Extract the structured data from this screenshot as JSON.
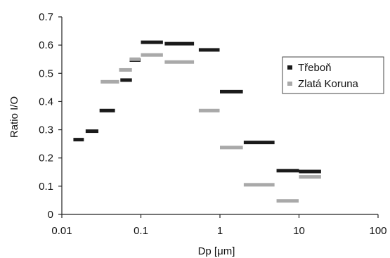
{
  "chart_data": {
    "type": "scatter",
    "xscale": "log",
    "xlabel": "Dp [μm]",
    "ylabel": "Ratio I/O",
    "xlim": [
      0.01,
      100
    ],
    "ylim": [
      0,
      0.7
    ],
    "xticks": [
      0.01,
      0.1,
      1,
      10,
      100
    ],
    "xtick_labels": [
      "0.01",
      "0.1",
      "1",
      "10",
      "100"
    ],
    "yticks": [
      0,
      0.1,
      0.2,
      0.3,
      0.4,
      0.5,
      0.6,
      0.7
    ],
    "ytick_labels": [
      "0",
      "0.1",
      "0.2",
      "0.3",
      "0.4",
      "0.5",
      "0.6",
      "0.7"
    ],
    "grid": false,
    "legend_position": "right",
    "series": [
      {
        "name": "Třeboň",
        "color": "#1a1a1a",
        "marker": "horizontal-bar",
        "points": [
          {
            "x": [
              0.014,
              0.019
            ],
            "y": 0.265
          },
          {
            "x": [
              0.02,
              0.029
            ],
            "y": 0.295
          },
          {
            "x": [
              0.03,
              0.047
            ],
            "y": 0.368
          },
          {
            "x": [
              0.055,
              0.077
            ],
            "y": 0.476
          },
          {
            "x": [
              0.072,
              0.099
            ],
            "y": 0.547
          },
          {
            "x": [
              0.1,
              0.19
            ],
            "y": 0.61
          },
          {
            "x": [
              0.2,
              0.47
            ],
            "y": 0.605
          },
          {
            "x": [
              0.54,
              0.99
            ],
            "y": 0.583
          },
          {
            "x": [
              1.0,
              1.95
            ],
            "y": 0.435
          },
          {
            "x": [
              2.0,
              4.9
            ],
            "y": 0.255
          },
          {
            "x": [
              5.2,
              10.0
            ],
            "y": 0.155
          },
          {
            "x": [
              10.0,
              19.0
            ],
            "y": 0.152
          }
        ]
      },
      {
        "name": "Zlatá Koruna",
        "color": "#a9a9a9",
        "marker": "horizontal-bar",
        "points": [
          {
            "x": [
              0.031,
              0.053
            ],
            "y": 0.47
          },
          {
            "x": [
              0.053,
              0.077
            ],
            "y": 0.512
          },
          {
            "x": [
              0.072,
              0.098
            ],
            "y": 0.55
          },
          {
            "x": [
              0.1,
              0.19
            ],
            "y": 0.565
          },
          {
            "x": [
              0.2,
              0.47
            ],
            "y": 0.54
          },
          {
            "x": [
              0.54,
              0.99
            ],
            "y": 0.368
          },
          {
            "x": [
              1.0,
              1.95
            ],
            "y": 0.237
          },
          {
            "x": [
              2.0,
              4.9
            ],
            "y": 0.105
          },
          {
            "x": [
              5.2,
              9.9
            ],
            "y": 0.048
          },
          {
            "x": [
              10.0,
              19.0
            ],
            "y": 0.133
          }
        ]
      }
    ]
  }
}
